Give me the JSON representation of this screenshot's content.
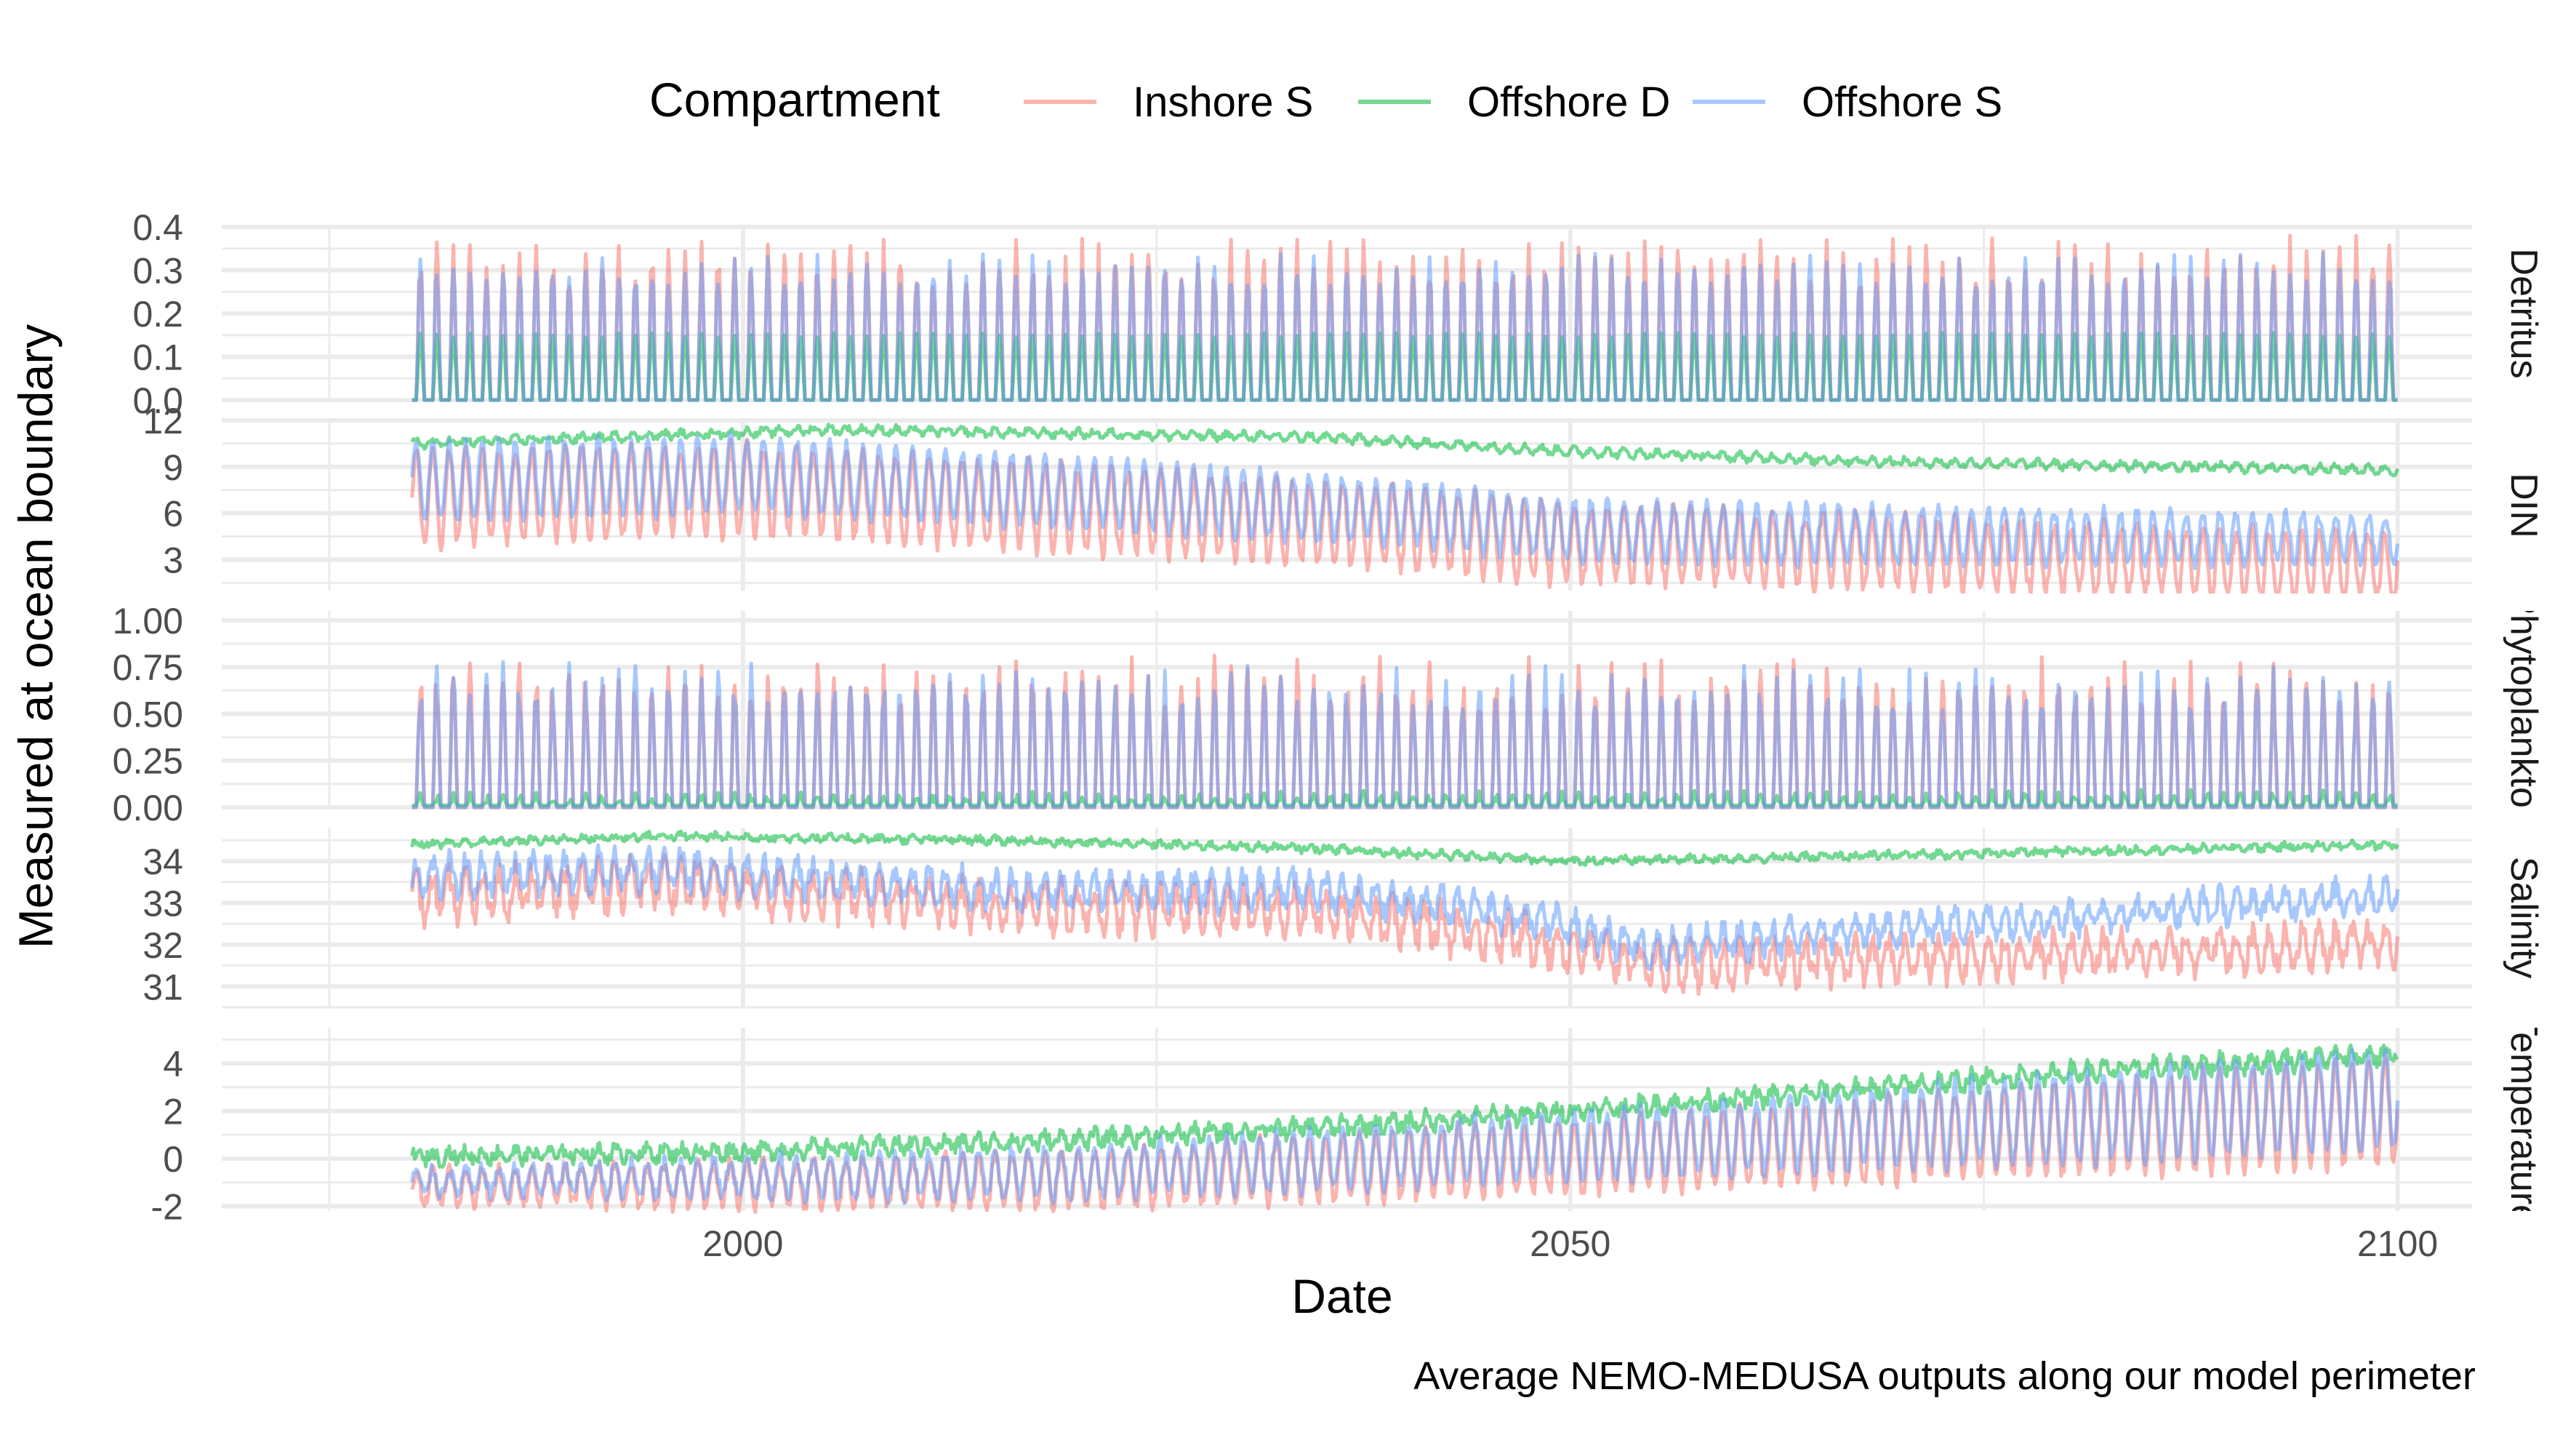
{
  "chart_data": {
    "type": "line",
    "legend": {
      "title": "Compartment",
      "position": "top",
      "entries": [
        {
          "name": "Inshore S",
          "color": "#F8766D"
        },
        {
          "name": "Offshore D",
          "color": "#00BA38"
        },
        {
          "name": "Offshore S",
          "color": "#619CFF"
        }
      ]
    },
    "xlabel": "Date",
    "ylabel": "Measured at ocean boundary",
    "caption": "Average NEMO-MEDUSA outputs along our model perimeter",
    "x_range": [
      1980,
      2100
    ],
    "x_ticks": [
      "2000",
      "2050",
      "2100"
    ],
    "grid": true,
    "panels": [
      {
        "strip_label": "Detritus",
        "ylim": [
          0,
          0.4
        ],
        "y_ticks": [
          "0.0",
          "0.1",
          "0.2",
          "0.3",
          "0.4"
        ],
        "series": [
          {
            "name": "Inshore S",
            "pattern": "seasonal peaks",
            "baseline": [
              [
                1980,
                0
              ],
              [
                2100,
                0
              ]
            ],
            "peak": [
              [
                1980,
                0.32
              ],
              [
                2100,
                0.32
              ]
            ],
            "peak_spread": 0.06
          },
          {
            "name": "Offshore D",
            "pattern": "seasonal peaks",
            "baseline": [
              [
                1980,
                0
              ],
              [
                2100,
                0
              ]
            ],
            "peak": [
              [
                1980,
                0.15
              ],
              [
                2100,
                0.15
              ]
            ],
            "peak_spread": 0.005
          },
          {
            "name": "Offshore S",
            "pattern": "seasonal peaks",
            "baseline": [
              [
                1980,
                0
              ],
              [
                2100,
                0
              ]
            ],
            "peak": [
              [
                1980,
                0.3
              ],
              [
                2100,
                0.3
              ]
            ],
            "peak_spread": 0.04
          }
        ]
      },
      {
        "strip_label": "DIN",
        "ylim": [
          1,
          12
        ],
        "y_ticks": [
          "3",
          "6",
          "9",
          "12"
        ],
        "series": [
          {
            "name": "Inshore S",
            "pattern": "seasonal",
            "mean": [
              [
                1980,
                7
              ],
              [
                2000,
                7.5
              ],
              [
                2040,
                5
              ],
              [
                2050,
                4
              ],
              [
                2100,
                2.5
              ]
            ],
            "amplitude": [
              [
                1980,
                3
              ],
              [
                2100,
                2
              ]
            ],
            "noise": 0.5
          },
          {
            "name": "Offshore D",
            "pattern": "seasonal",
            "mean": [
              [
                1980,
                10.5
              ],
              [
                2005,
                11.4
              ],
              [
                2035,
                10.9
              ],
              [
                2050,
                10
              ],
              [
                2070,
                9.3
              ],
              [
                2100,
                8.8
              ]
            ],
            "amplitude": [
              [
                1980,
                0.2
              ],
              [
                2100,
                0.2
              ]
            ],
            "noise": 0.2
          },
          {
            "name": "Offshore S",
            "pattern": "seasonal",
            "mean": [
              [
                1980,
                8
              ],
              [
                2000,
                8.5
              ],
              [
                2040,
                6
              ],
              [
                2050,
                4.8
              ],
              [
                2100,
                4.3
              ]
            ],
            "amplitude": [
              [
                1980,
                2.5
              ],
              [
                2100,
                1.5
              ]
            ],
            "noise": 0.4
          }
        ]
      },
      {
        "strip_label": "Phytoplankton",
        "ylim": [
          0,
          1.05
        ],
        "y_ticks": [
          "0.00",
          "0.25",
          "0.50",
          "0.75",
          "1.00"
        ],
        "series": [
          {
            "name": "Inshore S",
            "pattern": "seasonal peaks",
            "baseline": [
              [
                1980,
                0
              ],
              [
                2100,
                0
              ]
            ],
            "peak": [
              [
                1980,
                0.68
              ],
              [
                2100,
                0.65
              ]
            ],
            "peak_spread": 0.15
          },
          {
            "name": "Offshore D",
            "pattern": "seasonal peaks",
            "baseline": [
              [
                1980,
                0.01
              ],
              [
                2100,
                0.01
              ]
            ],
            "peak": [
              [
                1980,
                0.05
              ],
              [
                2100,
                0.07
              ]
            ],
            "peak_spread": 0.03
          },
          {
            "name": "Offshore S",
            "pattern": "seasonal peaks",
            "baseline": [
              [
                1980,
                0
              ],
              [
                2100,
                0
              ]
            ],
            "peak": [
              [
                1980,
                0.66
              ],
              [
                2100,
                0.63
              ]
            ],
            "peak_spread": 0.12
          }
        ]
      },
      {
        "strip_label": "Salinity",
        "ylim": [
          30.5,
          34.8
        ],
        "y_ticks": [
          "31",
          "32",
          "33",
          "34"
        ],
        "series": [
          {
            "name": "Inshore S",
            "pattern": "seasonal",
            "mean": [
              [
                1980,
                33.1
              ],
              [
                1995,
                33.5
              ],
              [
                2015,
                32.9
              ],
              [
                2035,
                32.8
              ],
              [
                2048,
                32.1
              ],
              [
                2055,
                31.5
              ],
              [
                2100,
                32
              ]
            ],
            "amplitude": [
              [
                1980,
                0.5
              ],
              [
                2100,
                0.4
              ]
            ],
            "noise": 0.3
          },
          {
            "name": "Offshore D",
            "pattern": "seasonal",
            "mean": [
              [
                1980,
                34.4
              ],
              [
                1995,
                34.6
              ],
              [
                2015,
                34.5
              ],
              [
                2035,
                34.3
              ],
              [
                2050,
                34.0
              ],
              [
                2065,
                34.1
              ],
              [
                2100,
                34.4
              ]
            ],
            "amplitude": [
              [
                1980,
                0.05
              ],
              [
                2100,
                0.05
              ]
            ],
            "noise": 0.08
          },
          {
            "name": "Offshore S",
            "pattern": "seasonal",
            "mean": [
              [
                1980,
                33.6
              ],
              [
                1995,
                33.8
              ],
              [
                2015,
                33.3
              ],
              [
                2035,
                33.3
              ],
              [
                2048,
                32.6
              ],
              [
                2055,
                31.9
              ],
              [
                2070,
                32.4
              ],
              [
                2100,
                33.2
              ]
            ],
            "amplitude": [
              [
                1980,
                0.4
              ],
              [
                2100,
                0.3
              ]
            ],
            "noise": 0.25
          }
        ]
      },
      {
        "strip_label": "Temperature",
        "ylim": [
          -2.2,
          5.5
        ],
        "y_ticks": [
          "-2",
          "0",
          "2",
          "4"
        ],
        "series": [
          {
            "name": "Inshore S",
            "pattern": "seasonal",
            "mean": [
              [
                1980,
                -1.2
              ],
              [
                2020,
                -0.9
              ],
              [
                2050,
                0
              ],
              [
                2100,
                2.0
              ]
            ],
            "amplitude": [
              [
                1980,
                0.7
              ],
              [
                2050,
                1.5
              ],
              [
                2100,
                2.2
              ]
            ],
            "noise": 0.3
          },
          {
            "name": "Offshore D",
            "pattern": "seasonal",
            "mean": [
              [
                1980,
                0.1
              ],
              [
                2000,
                0.3
              ],
              [
                2020,
                0.8
              ],
              [
                2040,
                1.5
              ],
              [
                2060,
                2.5
              ],
              [
                2080,
                3.6
              ],
              [
                2100,
                4.4
              ]
            ],
            "amplitude": [
              [
                1980,
                0.2
              ],
              [
                2100,
                0.3
              ]
            ],
            "noise": 0.3
          },
          {
            "name": "Offshore S",
            "pattern": "seasonal",
            "mean": [
              [
                1980,
                -1.0
              ],
              [
                2020,
                -0.6
              ],
              [
                2050,
                0.5
              ],
              [
                2100,
                2.5
              ]
            ],
            "amplitude": [
              [
                1980,
                0.5
              ],
              [
                2050,
                1.4
              ],
              [
                2100,
                2.1
              ]
            ],
            "noise": 0.3
          }
        ]
      }
    ]
  }
}
